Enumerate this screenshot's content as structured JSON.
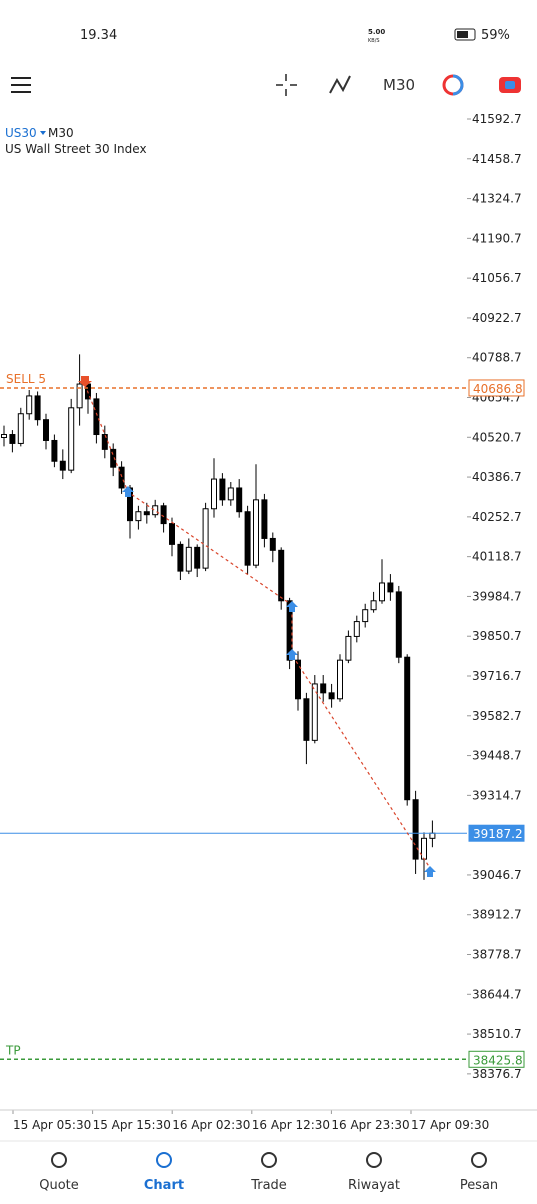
{
  "status": {
    "time": "19.34",
    "speed": "5.00",
    "speed_unit": "KB/S",
    "battery": "59%"
  },
  "chart_data": {
    "type": "candlestick",
    "symbol": "US30",
    "timeframe": "M30",
    "subtitle": "US Wall Street 30 Index",
    "ylim": [
      38255,
      41623
    ],
    "yticks": [
      41592.7,
      41458.7,
      41324.7,
      41190.7,
      41056.7,
      40922.7,
      40788.7,
      40654.7,
      40520.7,
      40386.7,
      40252.7,
      40118.7,
      39984.7,
      39850.7,
      39716.7,
      39582.7,
      39448.7,
      39314.7,
      39046.7,
      38912.7,
      38778.7,
      38644.7,
      38510.7,
      38376.7
    ],
    "x_labels": [
      "15 Apr 05:30",
      "15 Apr 15:30",
      "16 Apr 02:30",
      "16 Apr 12:30",
      "16 Apr 23:30",
      "17 Apr 09:30"
    ],
    "color": "#000000",
    "open": [
      40520,
      40530,
      40500,
      40600,
      40660,
      40580,
      40510,
      40440,
      40410,
      40620,
      40700,
      40650,
      40530,
      40480,
      40420,
      40350,
      40240,
      40270,
      40260,
      40290,
      40230,
      40160,
      40070,
      40150,
      40080,
      40280,
      40380,
      40310,
      40350,
      40270,
      40090,
      40310,
      40180,
      40140,
      39970,
      39770,
      39640,
      39500,
      39690,
      39660,
      39640,
      39770,
      39850,
      39900,
      39940,
      39970,
      40030,
      40000,
      39780,
      39300,
      39100,
      39170
    ],
    "high": [
      40560,
      40545,
      40620,
      40680,
      40675,
      40600,
      40530,
      40480,
      40650,
      40800,
      40720,
      40670,
      40560,
      40500,
      40440,
      40360,
      40290,
      40300,
      40310,
      40300,
      40250,
      40170,
      40180,
      40160,
      40300,
      40450,
      40400,
      40370,
      40380,
      40290,
      40430,
      40330,
      40200,
      40150,
      39980,
      39800,
      39660,
      39720,
      39720,
      39690,
      39790,
      39870,
      39920,
      39960,
      40000,
      40110,
      40060,
      40020,
      39790,
      39330,
      39190,
      39230
    ],
    "low": [
      40490,
      40470,
      40490,
      40580,
      40560,
      40480,
      40420,
      40380,
      40400,
      40560,
      40600,
      40500,
      40450,
      40390,
      40330,
      40180,
      40210,
      40230,
      40250,
      40200,
      40120,
      40040,
      40060,
      40050,
      40070,
      40250,
      40290,
      40290,
      40250,
      40060,
      40080,
      40150,
      40100,
      39940,
      39740,
      39600,
      39420,
      39490,
      39630,
      39610,
      39630,
      39760,
      39830,
      39880,
      39930,
      39960,
      39970,
      39760,
      39280,
      39050,
      39030,
      39140
    ],
    "close": [
      40530,
      40500,
      40600,
      40660,
      40580,
      40510,
      40440,
      40410,
      40620,
      40700,
      40650,
      40530,
      40480,
      40420,
      40350,
      40240,
      40270,
      40260,
      40290,
      40230,
      40160,
      40070,
      40150,
      40080,
      40280,
      40380,
      40310,
      40350,
      40270,
      40090,
      40310,
      40180,
      40140,
      39970,
      39770,
      39640,
      39500,
      39690,
      39660,
      39640,
      39770,
      39850,
      39900,
      39940,
      39970,
      40030,
      40000,
      39780,
      39300,
      39100,
      39170,
      39187.2
    ],
    "price_lines": [
      {
        "label": "SELL 5",
        "value": 40686.8,
        "color": "#e8702a",
        "dashed": true
      },
      {
        "value": 39187.2,
        "color": "#3b8ee6",
        "dashed": false
      },
      {
        "label": "TP",
        "value": 38425.8,
        "color": "#3a9a3a",
        "dashed": true
      }
    ]
  },
  "nav": [
    "Quote",
    "Chart",
    "Trade",
    "Riwayat",
    "Pesan"
  ],
  "nav_active": 1
}
